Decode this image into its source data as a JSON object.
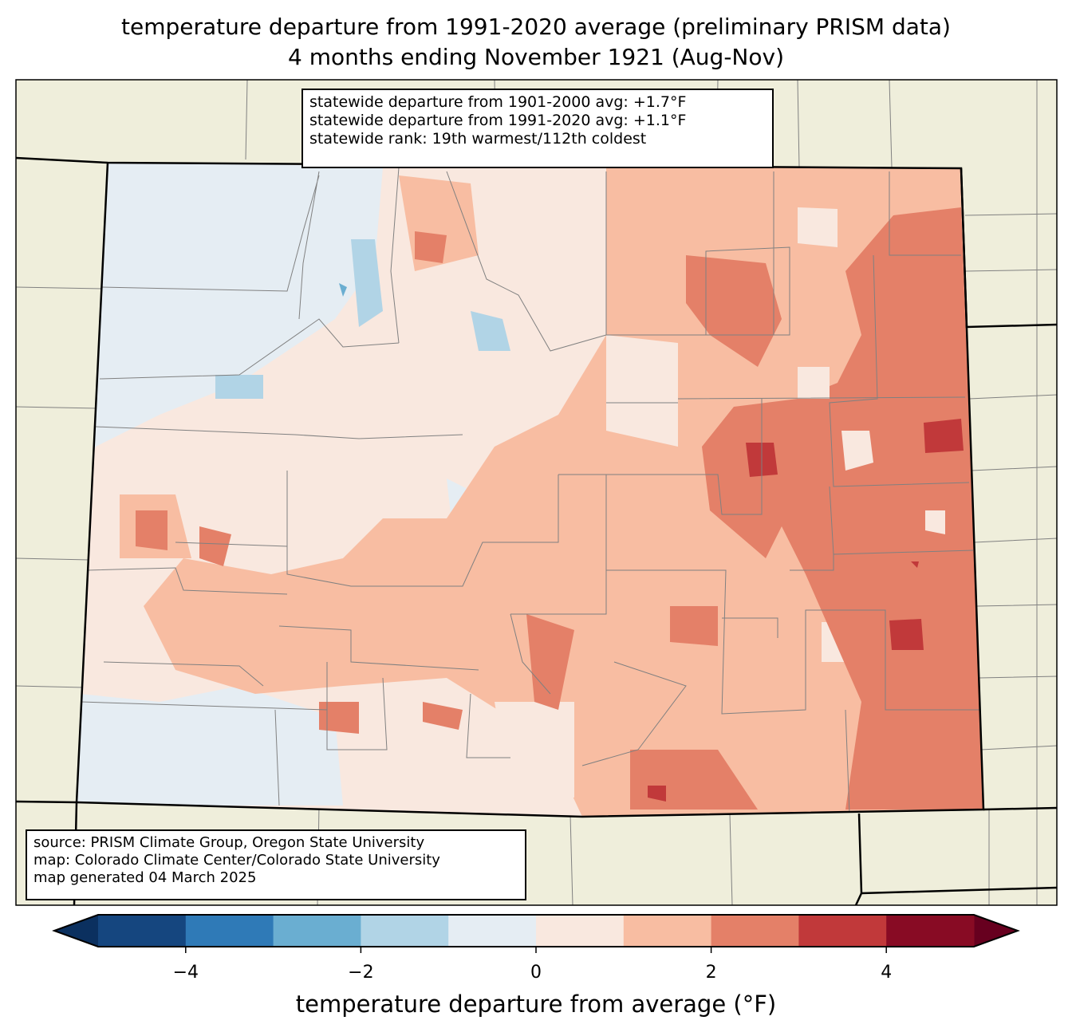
{
  "title": {
    "line1": "temperature departure from 1991-2020 average (preliminary PRISM data)",
    "line2": "4 months ending November 1921 (Aug-Nov)"
  },
  "stats_box": {
    "line1": "statewide departure from 1901-2000 avg: +1.7°F",
    "line2": "statewide departure from 1991-2020 avg: +1.1°F",
    "line3": "statewide rank: 19th warmest/112th coldest"
  },
  "source_box": {
    "line1": "source: PRISM Climate Group, Oregon State University",
    "line2": "map: Colorado Climate Center/Colorado State University",
    "line3": "map generated 04 March 2025"
  },
  "colorbar": {
    "label": "temperature departure from average (°F)",
    "levels": [
      -5,
      -4,
      -3,
      -2,
      -1,
      0,
      1,
      2,
      3,
      4,
      5
    ],
    "ticks": [
      "−4",
      "−2",
      "0",
      "2",
      "4"
    ],
    "colors": [
      "#15467f",
      "#2f7ab7",
      "#6aaed1",
      "#b1d4e6",
      "#e5edf3",
      "#f9e8df",
      "#f8bda2",
      "#e48068",
      "#c1393a",
      "#880b24"
    ],
    "under_color": "#0b305f",
    "over_color": "#67001f"
  },
  "map_colors": {
    "land": "#efeedb",
    "county_line": "#808080",
    "state_line": "#000000"
  }
}
